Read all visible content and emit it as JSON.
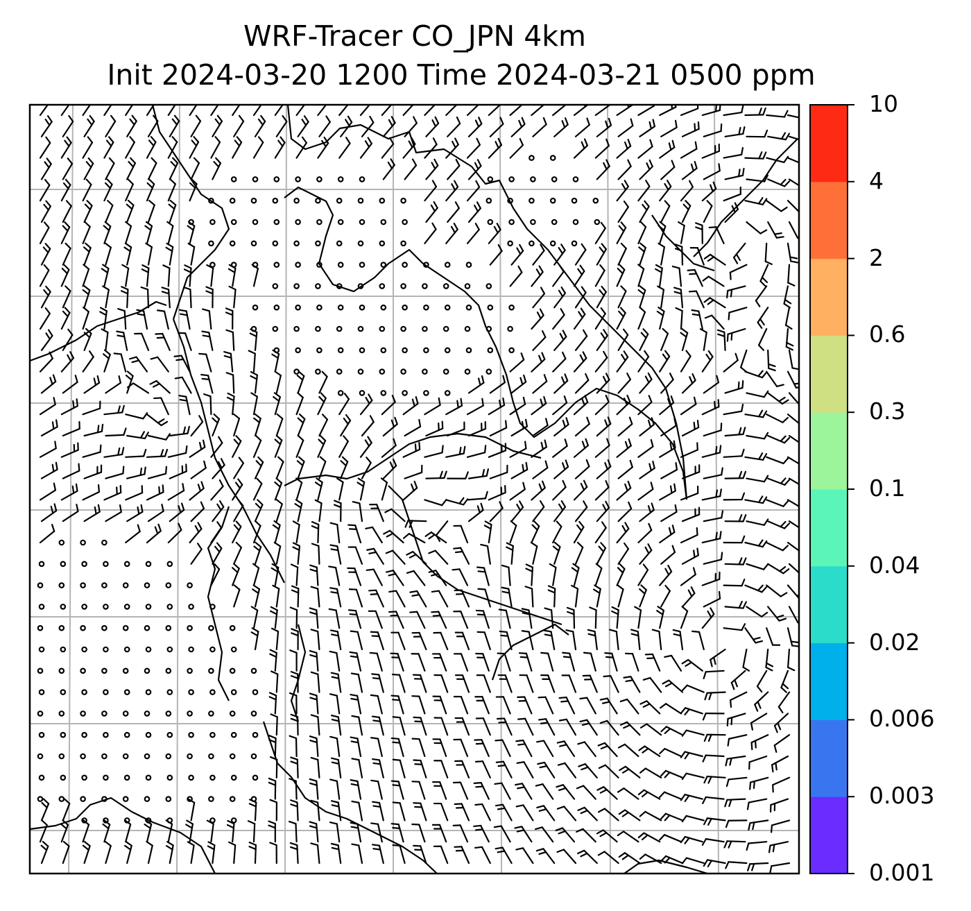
{
  "title": {
    "line1": "WRF-Tracer CO_JPN 4km",
    "line2": "Init 2024-03-20 1200 Time 2024-03-21 0500 ppm"
  },
  "colorbar": {
    "ticks": [
      "0.001",
      "0.003",
      "0.006",
      "0.02",
      "0.04",
      "0.1",
      "0.3",
      "0.6",
      "2",
      "4",
      "10"
    ],
    "colors": [
      "#6a2cff",
      "#3a75f0",
      "#00b0ea",
      "#2adcc9",
      "#5cf5b8",
      "#9cf59a",
      "#cfe083",
      "#ffb061",
      "#ff7038",
      "#ff2a14"
    ]
  },
  "map": {
    "gridlines": true,
    "barb_color": "#000000",
    "grid_color": "#b4b4b4"
  }
}
